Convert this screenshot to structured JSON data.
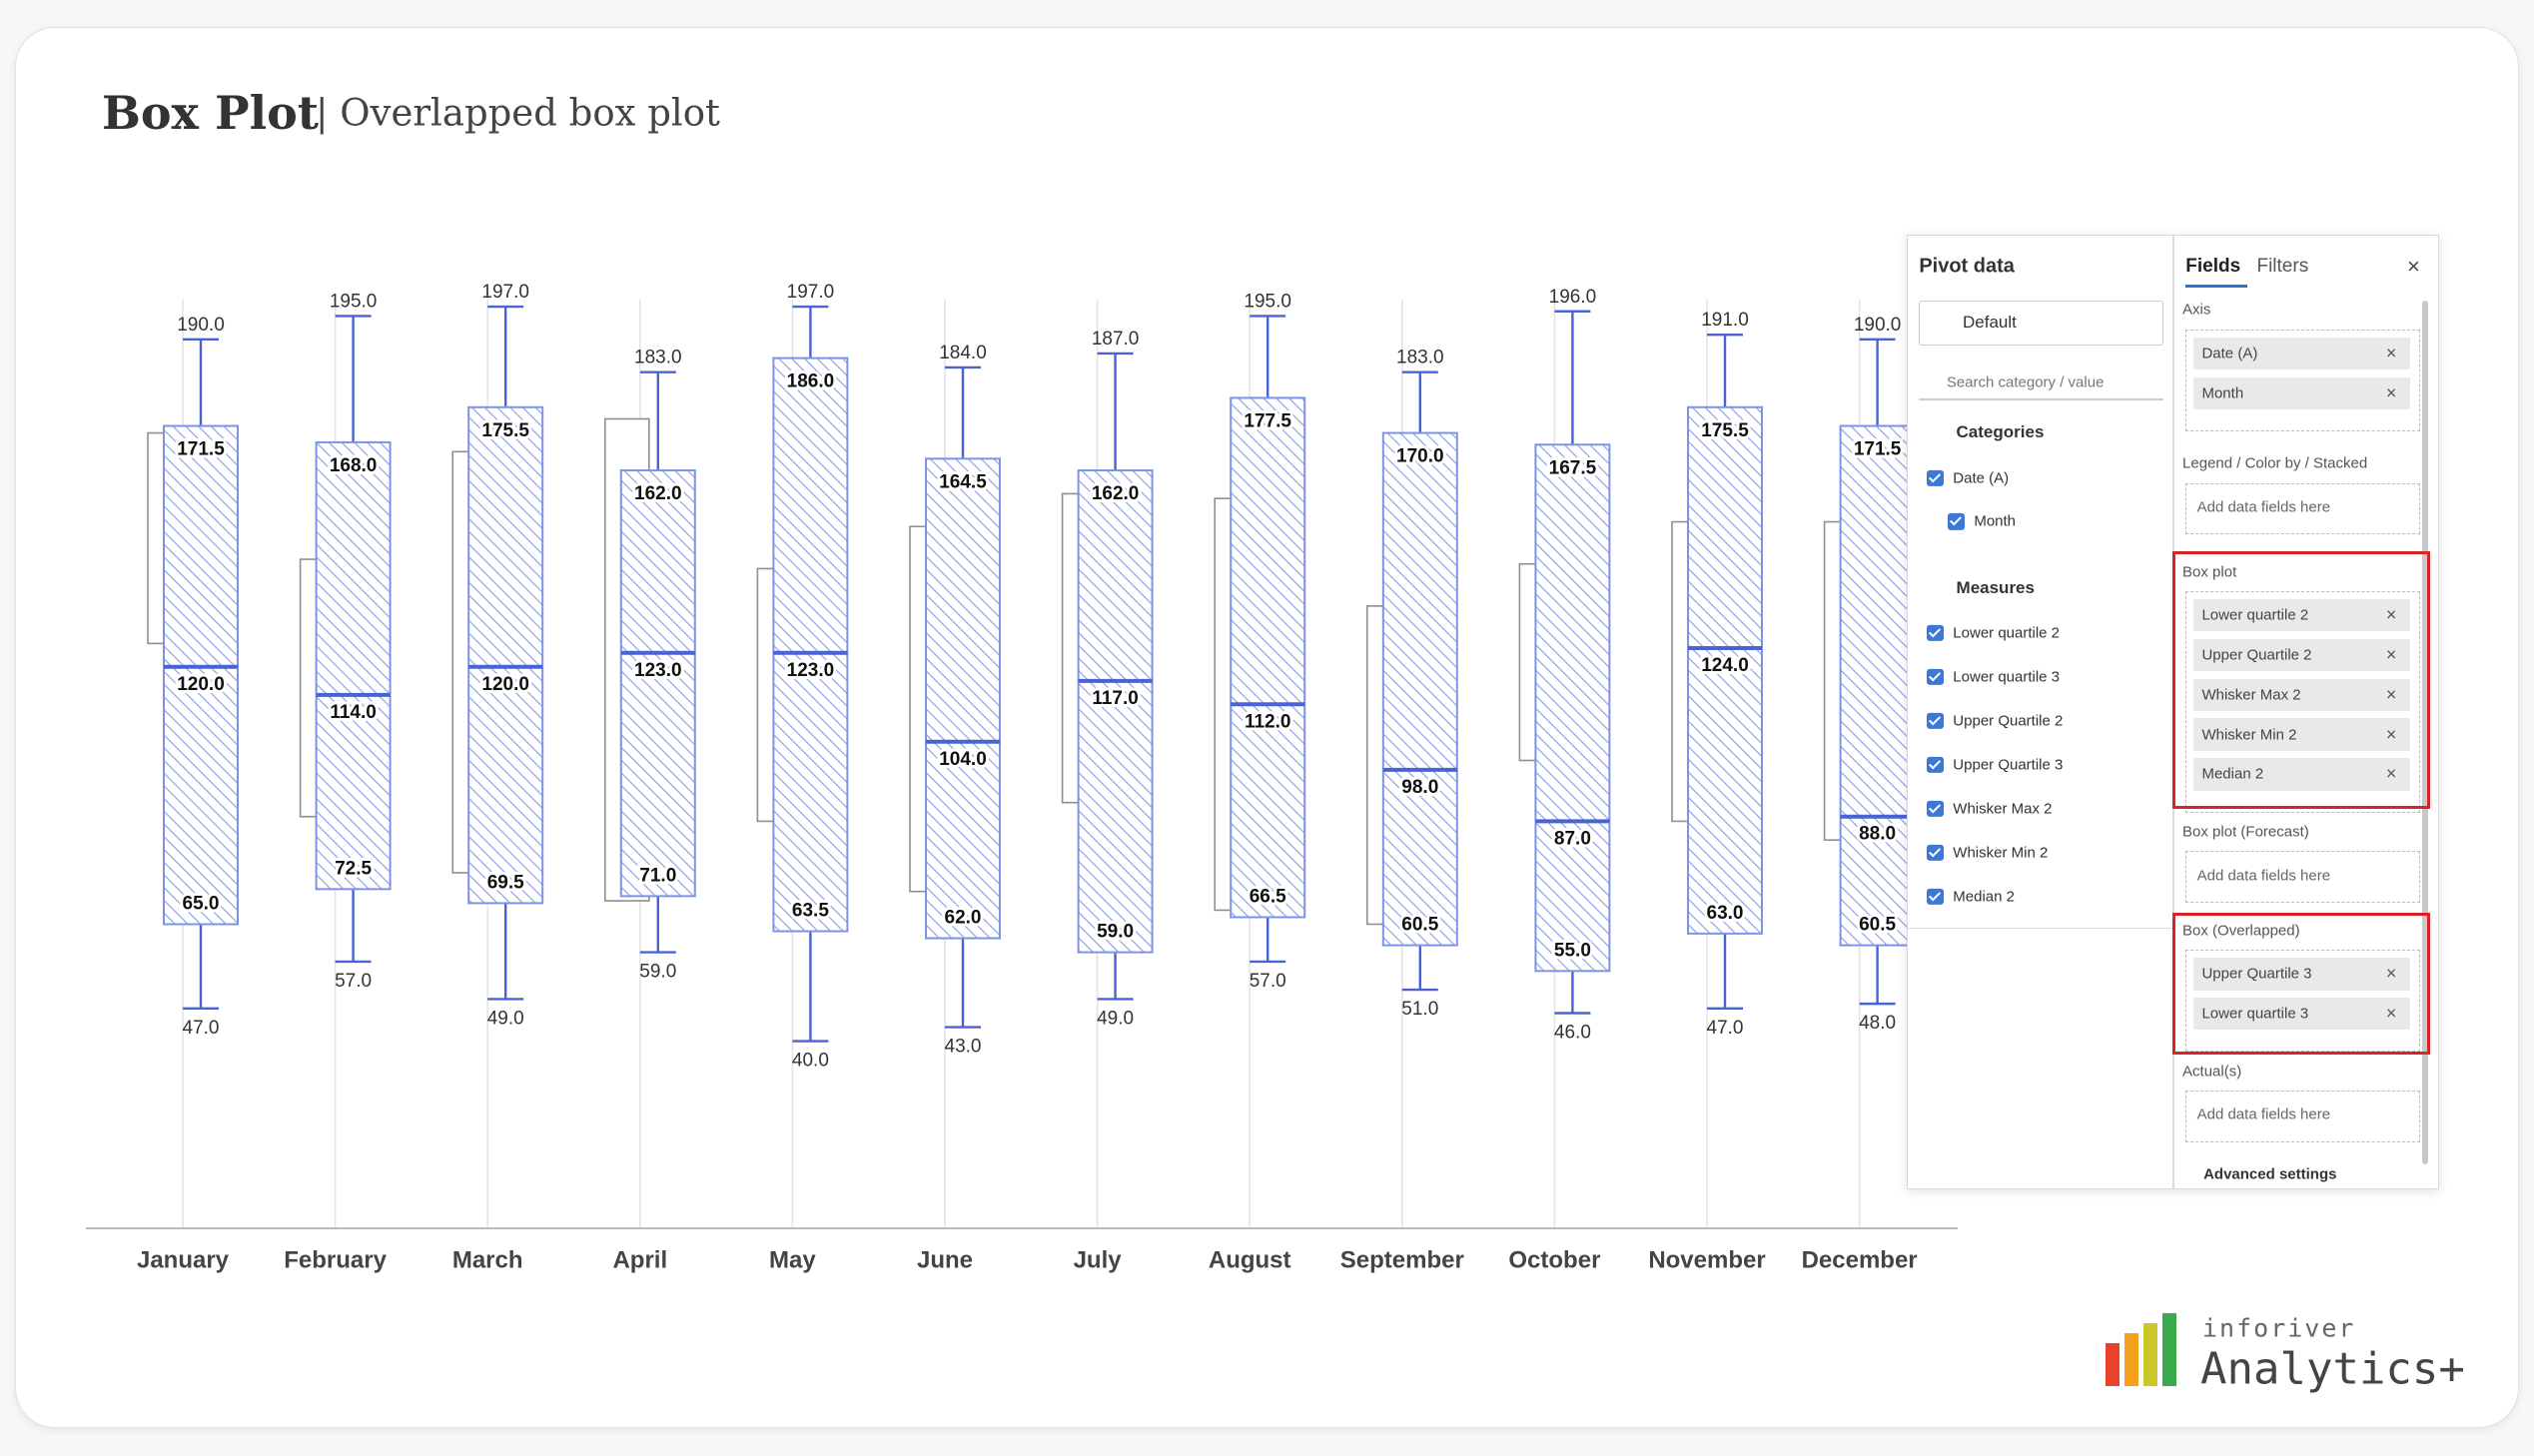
{
  "header": {
    "title": "Box Plot",
    "subtitle": "| Overlapped box plot"
  },
  "chart_data": {
    "type": "box",
    "categories": [
      "January",
      "February",
      "March",
      "April",
      "May",
      "June",
      "July",
      "August",
      "September",
      "October",
      "November",
      "December"
    ],
    "ylim": [
      0,
      200
    ],
    "series": [
      {
        "name": "Whisker Max 2",
        "color": "#4a63d3",
        "values": [
          190,
          195,
          197,
          183,
          197,
          184,
          187,
          195,
          183,
          196,
          191,
          190
        ],
        "value_labels": [
          "190.0",
          "195.0",
          "197.0",
          "183.0",
          "197.0",
          "184.0",
          "187.0",
          "195.0",
          "183.0",
          "196.0",
          "191.0",
          "190.0"
        ]
      },
      {
        "name": "Upper Quartile 2",
        "color": "#4a63d3",
        "values": [
          171.5,
          168,
          175.5,
          162,
          186,
          164.5,
          162,
          177.5,
          170,
          167.5,
          175.5,
          171.5
        ],
        "value_labels": [
          "171.5",
          "168.0",
          "175.5",
          "162.0",
          "186.0",
          "164.5",
          "162.0",
          "177.5",
          "170.0",
          "167.5",
          "175.5",
          "171.5"
        ]
      },
      {
        "name": "Median 2",
        "color": "#4a63d3",
        "values": [
          120,
          114,
          120,
          123,
          123,
          104,
          117,
          112,
          98,
          87,
          124,
          88
        ],
        "value_labels": [
          "120.0",
          "114.0",
          "120.0",
          "123.0",
          "123.0",
          "104.0",
          "117.0",
          "112.0",
          "98.0",
          "87.0",
          "124.0",
          "88.0"
        ]
      },
      {
        "name": "Lower quartile 2",
        "color": "#4a63d3",
        "values": [
          65,
          72.5,
          69.5,
          71,
          63.5,
          62,
          59,
          66.5,
          60.5,
          55,
          63,
          60.5
        ],
        "value_labels": [
          "65.0",
          "72.5",
          "69.5",
          "71.0",
          "63.5",
          "62.0",
          "59.0",
          "66.5",
          "60.5",
          "55.0",
          "63.0",
          "60.5"
        ]
      },
      {
        "name": "Whisker Min 2",
        "color": "#4a63d3",
        "values": [
          47,
          57,
          49,
          59,
          40,
          43,
          49,
          57,
          51,
          46,
          47,
          48
        ],
        "value_labels": [
          "47.0",
          "57.0",
          "49.0",
          "59.0",
          "40.0",
          "43.0",
          "49.0",
          "57.0",
          "51.0",
          "46.0",
          "47.0",
          "48.0"
        ]
      },
      {
        "name": "Upper Quartile 3",
        "color": "#8f8f8f",
        "values": [
          170,
          143,
          166,
          173,
          141,
          150,
          157,
          156,
          133,
          142,
          151,
          151
        ]
      },
      {
        "name": "Lower quartile 3",
        "color": "#8f8f8f",
        "values": [
          125,
          88,
          76,
          70,
          87,
          72,
          91,
          68,
          65,
          100,
          87,
          83
        ]
      }
    ]
  },
  "panel": {
    "pivot": {
      "title": "Pivot data",
      "view": "Default",
      "search": "Search category / value",
      "categories_title": "Categories",
      "categories": [
        "Date (A)",
        "Month"
      ],
      "measures_title": "Measures",
      "measures": [
        "Lower quartile 2",
        "Lower quartile 3",
        "Upper Quartile 2",
        "Upper Quartile 3",
        "Whisker Max 2",
        "Whisker Min 2",
        "Median 2"
      ]
    },
    "fields": {
      "tabs": [
        "Fields",
        "Filters"
      ],
      "sections": [
        {
          "title": "Axis",
          "chips": [
            "Date (A)",
            "Month"
          ]
        },
        {
          "title": "Legend / Color by / Stacked",
          "placeholder": "Add data fields here"
        },
        {
          "title": "Box plot",
          "chips": [
            "Lower quartile 2",
            "Upper Quartile 2",
            "Whisker Max 2",
            "Whisker Min 2",
            "Median 2"
          ]
        },
        {
          "title": "Box plot (Forecast)",
          "placeholder": "Add data fields here"
        },
        {
          "title": "Box (Overlapped)",
          "chips": [
            "Upper Quartile 3",
            "Lower quartile 3"
          ]
        },
        {
          "title": "Actual(s)",
          "placeholder": "Add data fields here"
        }
      ],
      "advanced": "Advanced settings"
    }
  },
  "logo": {
    "brand": "inforiver",
    "product": "Analytics+"
  }
}
